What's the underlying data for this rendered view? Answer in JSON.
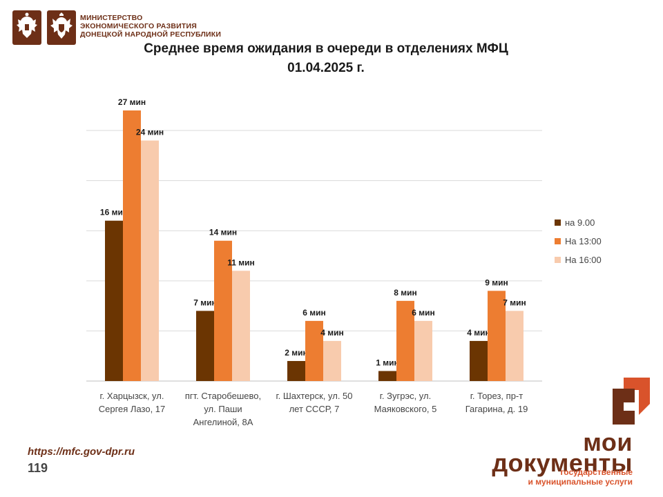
{
  "header": {
    "ministry_lines": [
      "МИНИСТЕРСТВО",
      "ЭКОНОМИЧЕСКОГО РАЗВИТИЯ",
      "ДОНЕЦКОЙ НАРОДНОЙ РЕСПУБЛИКИ"
    ],
    "emblems": [
      "russian-coat-of-arms-icon",
      "dpr-coat-of-arms-icon"
    ]
  },
  "colors": {
    "brand": "#6d2f17",
    "accent": "#d9532b",
    "series": [
      "#6b3502",
      "#ed7d31",
      "#f8cbad"
    ]
  },
  "chart_data": {
    "type": "bar",
    "title": "Среднее время ожидания в очереди в отделениях МФЦ",
    "subtitle": "01.04.2025   г.",
    "value_suffix": " мин",
    "categories": [
      [
        "г. Харцызск, ул.",
        "Сергея Лазо, 17"
      ],
      [
        "пгт. Старобешево,",
        "ул. Паши",
        "Ангелиной, 8А"
      ],
      [
        "г. Шахтерск, ул. 50",
        "лет СССР, 7"
      ],
      [
        "г. Зугрэс, ул.",
        "Маяковского, 5"
      ],
      [
        "г. Торез, пр-т",
        "Гагарина, д. 19"
      ]
    ],
    "series": [
      {
        "name": "на 9.00",
        "values": [
          16,
          7,
          2,
          1,
          4
        ]
      },
      {
        "name": "На 13:00",
        "values": [
          27,
          14,
          6,
          8,
          9
        ]
      },
      {
        "name": "На 16:00",
        "values": [
          24,
          11,
          4,
          6,
          7
        ]
      }
    ],
    "ylim": [
      0,
      27
    ],
    "y_gridlines": [
      5,
      10,
      15,
      20,
      25
    ],
    "grid": true,
    "legend": "right"
  },
  "footer": {
    "url": "https://mfc.gov-dpr.ru",
    "page": "119"
  },
  "logo": {
    "line1": "мои",
    "line2": "документы",
    "tag1": "государственные",
    "tag2": "и муниципальные услуги"
  }
}
